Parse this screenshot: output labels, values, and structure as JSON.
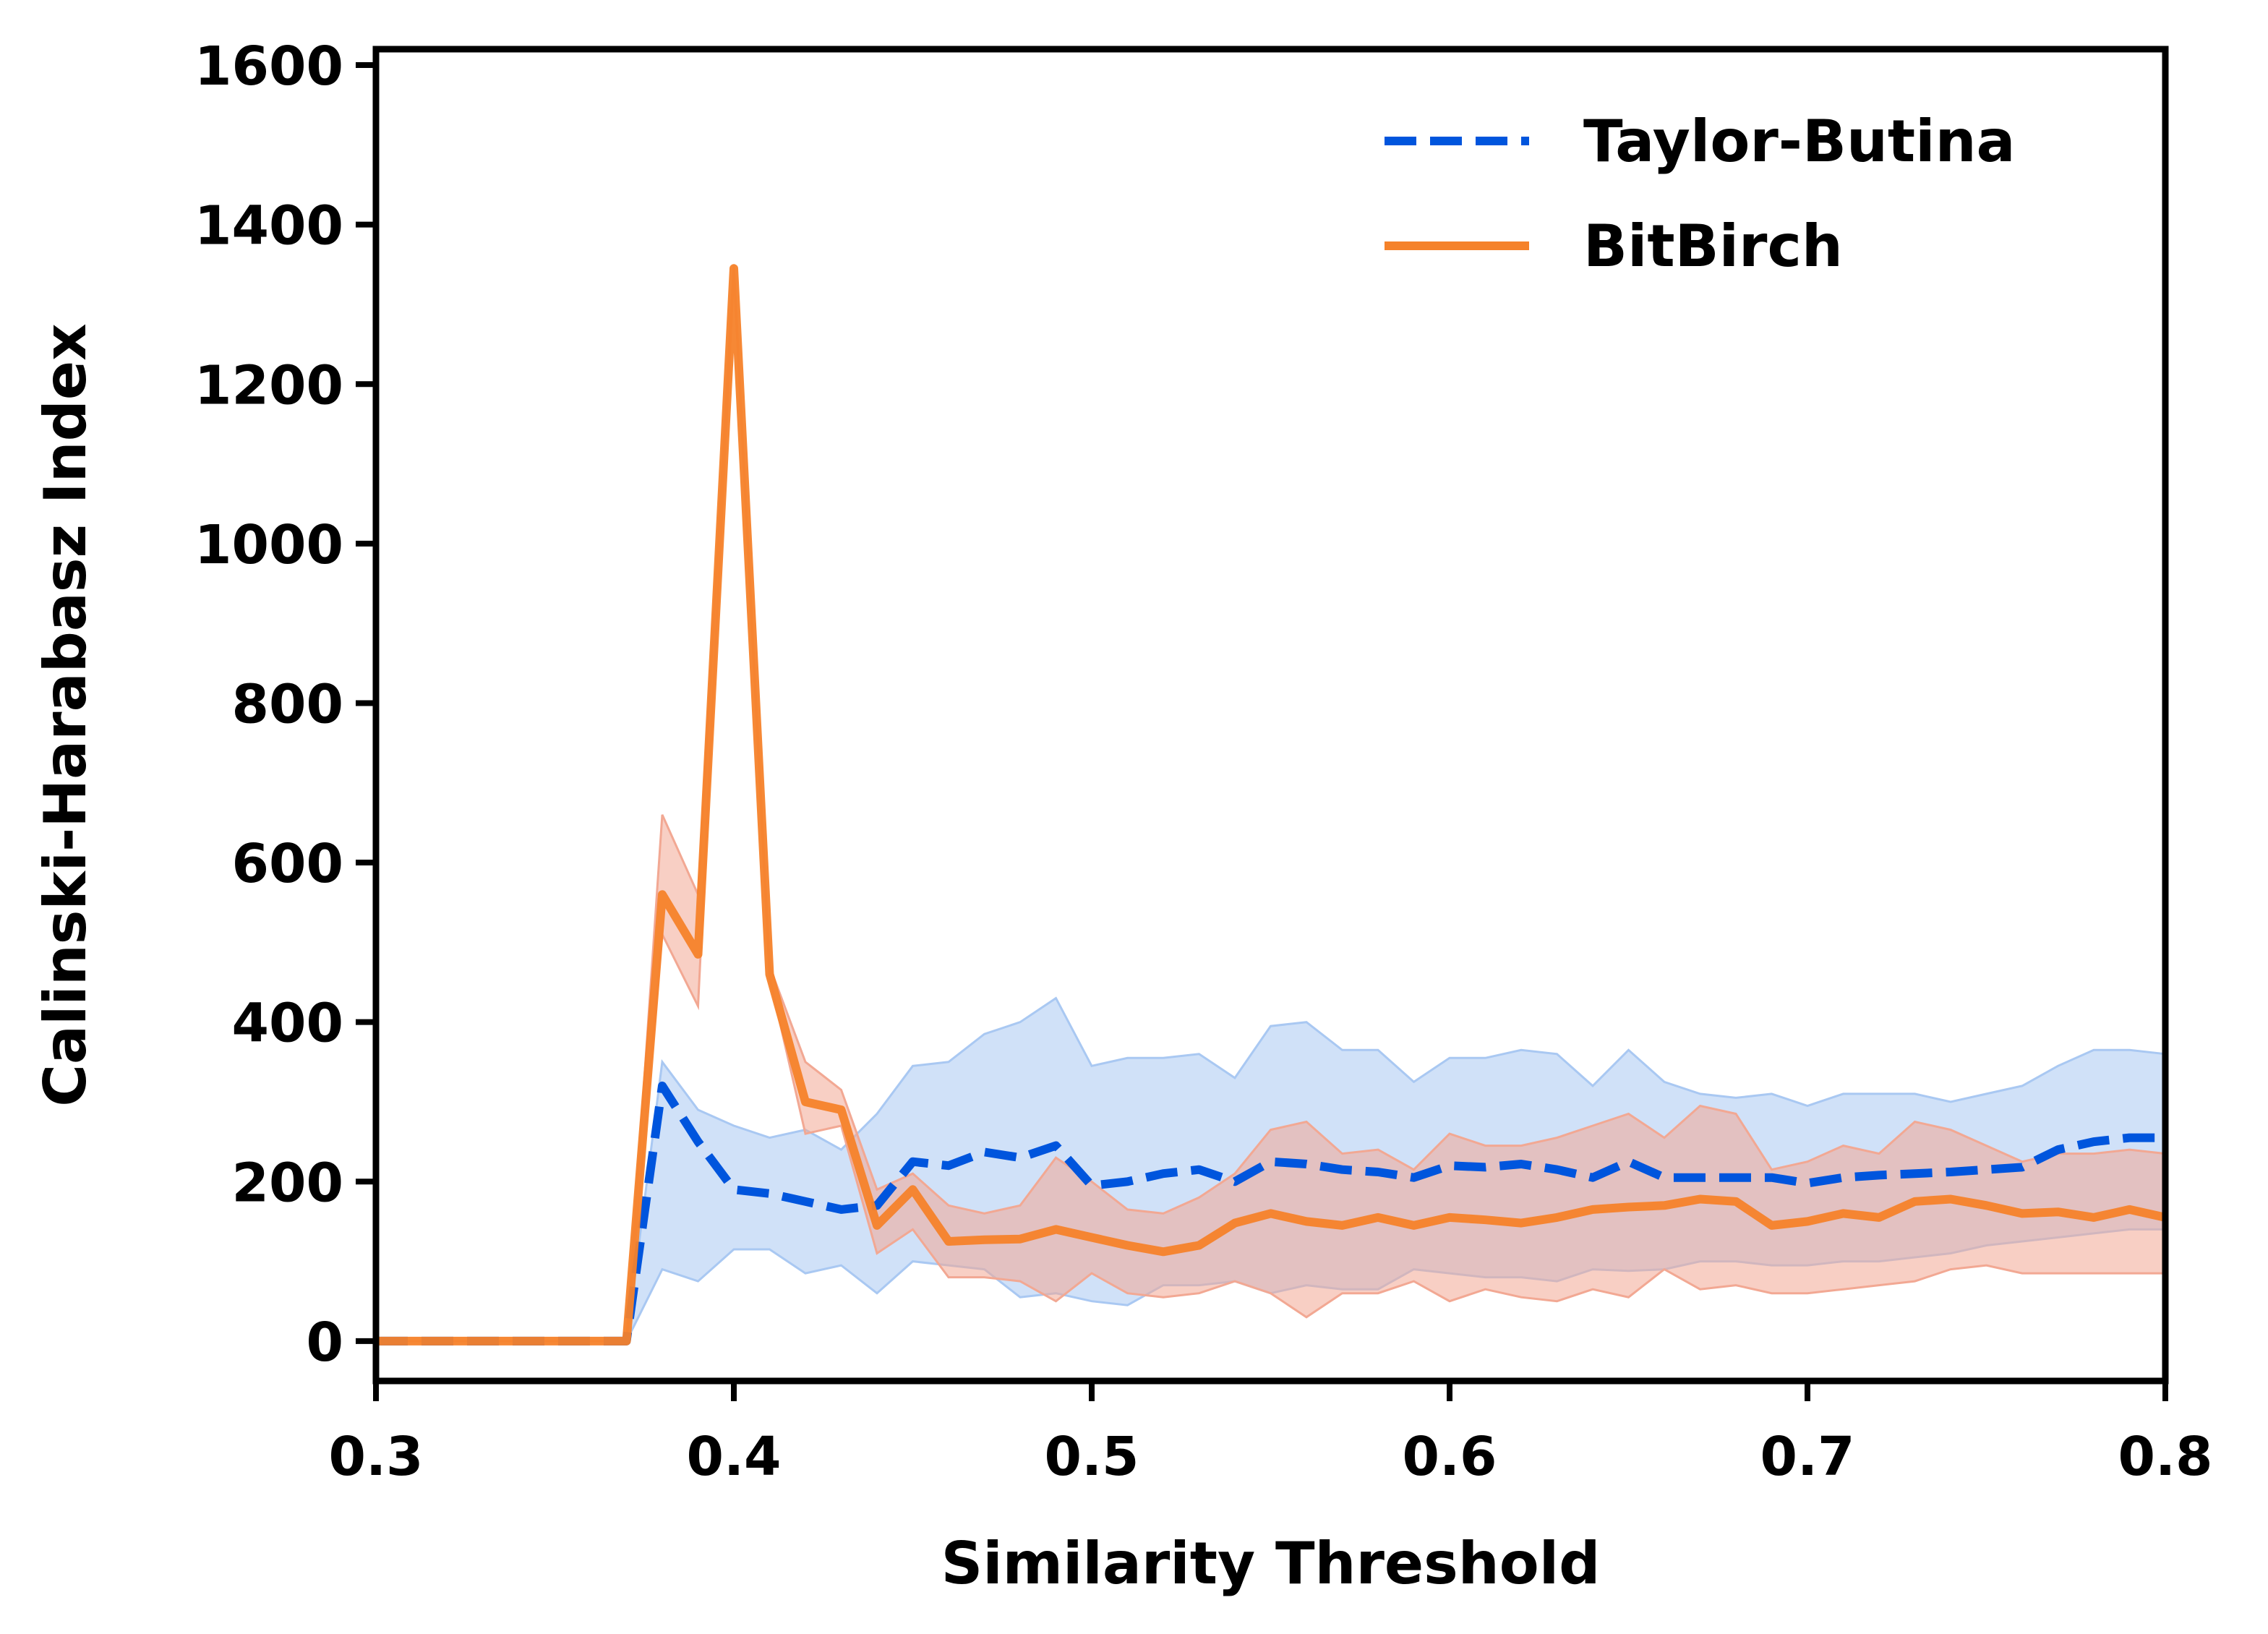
{
  "chart_data": {
    "type": "line",
    "title": "",
    "xlabel": "Similarity Threshold",
    "ylabel": "Calinski-Harabasz Index",
    "xlim": [
      0.3,
      0.8
    ],
    "ylim": [
      -50,
      1620
    ],
    "xticks": [
      0.3,
      0.4,
      0.5,
      0.6,
      0.7,
      0.8
    ],
    "xtick_labels": [
      "0.3",
      "0.4",
      "0.5",
      "0.6",
      "0.7",
      "0.8"
    ],
    "yticks": [
      0,
      200,
      400,
      600,
      800,
      1000,
      1200,
      1400,
      1600
    ],
    "ytick_labels": [
      "0",
      "200",
      "400",
      "600",
      "800",
      "1000",
      "1200",
      "1400",
      "1600"
    ],
    "grid": false,
    "legend_position": "top-right",
    "x": [
      0.3,
      0.31,
      0.32,
      0.33,
      0.34,
      0.35,
      0.36,
      0.37,
      0.38,
      0.39,
      0.4,
      0.41,
      0.42,
      0.43,
      0.44,
      0.45,
      0.46,
      0.47,
      0.48,
      0.49,
      0.5,
      0.51,
      0.52,
      0.53,
      0.54,
      0.55,
      0.56,
      0.57,
      0.58,
      0.59,
      0.6,
      0.61,
      0.62,
      0.63,
      0.64,
      0.65,
      0.66,
      0.67,
      0.68,
      0.69,
      0.7,
      0.71,
      0.72,
      0.73,
      0.74,
      0.75,
      0.76,
      0.77,
      0.78,
      0.79,
      0.8
    ],
    "series": [
      {
        "name": "Taylor-Butina",
        "color": "#0055dd",
        "band_color": "#a9c8f2",
        "line_style": "dashed",
        "values": [
          0,
          0,
          0,
          0,
          0,
          0,
          0,
          0,
          320,
          250,
          190,
          185,
          175,
          165,
          170,
          225,
          220,
          237,
          230,
          245,
          195,
          200,
          210,
          215,
          200,
          225,
          222,
          215,
          212,
          205,
          220,
          218,
          222,
          215,
          205,
          225,
          205,
          205,
          205,
          205,
          198,
          205,
          208,
          210,
          212,
          215,
          218,
          240,
          250,
          255,
          255
        ],
        "lower": [
          0,
          0,
          0,
          0,
          0,
          0,
          0,
          0,
          90,
          75,
          115,
          115,
          85,
          95,
          60,
          100,
          95,
          90,
          55,
          60,
          50,
          45,
          70,
          70,
          75,
          60,
          70,
          65,
          65,
          90,
          85,
          80,
          80,
          75,
          90,
          88,
          90,
          100,
          100,
          95,
          95,
          100,
          100,
          105,
          110,
          120,
          125,
          130,
          135,
          140,
          140
        ],
        "upper": [
          0,
          0,
          0,
          0,
          0,
          0,
          0,
          0,
          350,
          290,
          270,
          255,
          265,
          240,
          285,
          345,
          350,
          385,
          400,
          430,
          345,
          355,
          355,
          360,
          330,
          395,
          400,
          365,
          365,
          325,
          355,
          355,
          365,
          360,
          320,
          365,
          325,
          310,
          305,
          310,
          295,
          310,
          310,
          310,
          300,
          310,
          320,
          345,
          365,
          365,
          360
        ]
      },
      {
        "name": "BitBirch",
        "color": "#f5822a",
        "band_color": "#f2a893",
        "line_style": "solid",
        "values": [
          0,
          0,
          0,
          0,
          0,
          0,
          0,
          0,
          560,
          485,
          1345,
          460,
          300,
          290,
          145,
          190,
          125,
          127,
          128,
          140,
          130,
          120,
          112,
          120,
          148,
          160,
          150,
          145,
          155,
          145,
          155,
          152,
          148,
          155,
          165,
          168,
          170,
          178,
          175,
          145,
          150,
          160,
          155,
          175,
          178,
          170,
          160,
          162,
          155,
          165,
          155
        ],
        "lower": [
          0,
          0,
          0,
          0,
          0,
          0,
          0,
          0,
          510,
          420,
          1340,
          455,
          260,
          270,
          110,
          140,
          80,
          80,
          75,
          50,
          85,
          60,
          55,
          60,
          75,
          60,
          30,
          60,
          60,
          75,
          50,
          65,
          55,
          50,
          65,
          55,
          90,
          65,
          70,
          60,
          60,
          65,
          70,
          75,
          90,
          95,
          85,
          85,
          85,
          85,
          85
        ],
        "upper": [
          0,
          0,
          0,
          0,
          0,
          0,
          0,
          0,
          660,
          560,
          1350,
          470,
          350,
          315,
          190,
          210,
          170,
          160,
          170,
          230,
          200,
          165,
          160,
          180,
          210,
          265,
          275,
          235,
          240,
          215,
          260,
          245,
          245,
          255,
          270,
          285,
          255,
          295,
          285,
          215,
          225,
          245,
          235,
          275,
          265,
          245,
          225,
          235,
          235,
          240,
          235
        ]
      }
    ]
  }
}
